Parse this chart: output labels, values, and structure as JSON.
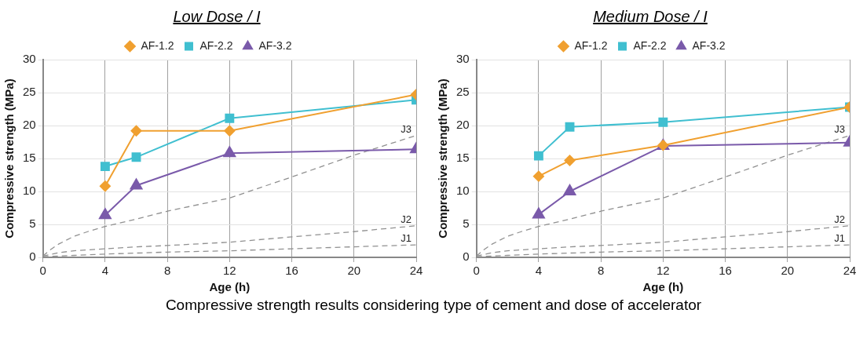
{
  "chart_data": [
    {
      "type": "line",
      "title": "Low Dose / I",
      "xlabel": "Age (h)",
      "ylabel": "Compressive strength (MPa)",
      "xlim": [
        0,
        24
      ],
      "xticks": [
        0,
        4,
        8,
        12,
        16,
        20,
        24
      ],
      "ylim": [
        0,
        30
      ],
      "yticks": [
        0,
        5,
        10,
        15,
        20,
        25,
        30
      ],
      "grid": true,
      "legend": "top",
      "x": [
        4,
        6,
        12,
        24
      ],
      "series": [
        {
          "name": "AF-1.2",
          "color": "#f0a030",
          "marker": "diamond",
          "values": [
            10.8,
            19.2,
            19.2,
            24.7
          ]
        },
        {
          "name": "AF-2.2",
          "color": "#40bfd0",
          "marker": "square",
          "values": [
            13.8,
            15.2,
            21.1,
            23.9
          ]
        },
        {
          "name": "AF-3.2",
          "color": "#7a5aaa",
          "marker": "triangle",
          "values": [
            6.4,
            10.9,
            15.8,
            16.4
          ]
        },
        {
          "name": "J3",
          "color": "#909090",
          "marker": "none",
          "line_style": "dashed",
          "x": [
            0,
            0.5,
            1,
            2,
            3,
            4,
            6,
            8,
            12,
            16,
            20,
            24
          ],
          "values": [
            0.2,
            1.2,
            2.0,
            3.2,
            4.0,
            4.7,
            5.8,
            7.0,
            9.0,
            12.2,
            15.5,
            18.5
          ]
        },
        {
          "name": "J2",
          "color": "#909090",
          "marker": "none",
          "line_style": "dashed",
          "x": [
            0,
            1,
            2,
            4,
            6,
            8,
            12,
            16,
            20,
            24
          ],
          "values": [
            0.2,
            0.7,
            1.0,
            1.3,
            1.6,
            1.8,
            2.3,
            3.1,
            3.9,
            4.8
          ]
        },
        {
          "name": "J1",
          "color": "#909090",
          "marker": "none",
          "line_style": "dashed",
          "x": [
            0,
            2,
            4,
            8,
            12,
            16,
            20,
            24
          ],
          "values": [
            0.1,
            0.3,
            0.5,
            0.8,
            1.0,
            1.3,
            1.6,
            1.9
          ]
        }
      ],
      "annotations": [
        "Compressive strength results considering type of cement and dose of accelerator"
      ]
    },
    {
      "type": "line",
      "title": "Medium Dose / I",
      "xlabel": "Age (h)",
      "ylabel": "Compressive strength (MPa)",
      "xlim": [
        0,
        24
      ],
      "xticks": [
        0,
        4,
        8,
        12,
        16,
        20,
        24
      ],
      "ylim": [
        0,
        30
      ],
      "yticks": [
        0,
        5,
        10,
        15,
        20,
        25,
        30
      ],
      "grid": true,
      "legend": "top",
      "x": [
        4,
        6,
        12,
        24
      ],
      "series": [
        {
          "name": "AF-1.2",
          "color": "#f0a030",
          "marker": "diamond",
          "values": [
            12.3,
            14.7,
            17.0,
            22.8
          ]
        },
        {
          "name": "AF-2.2",
          "color": "#40bfd0",
          "marker": "square",
          "values": [
            15.4,
            19.8,
            20.5,
            22.8
          ]
        },
        {
          "name": "AF-3.2",
          "color": "#7a5aaa",
          "marker": "triangle",
          "values": [
            6.5,
            10.0,
            16.9,
            17.4
          ]
        },
        {
          "name": "J3",
          "color": "#909090",
          "marker": "none",
          "line_style": "dashed",
          "x": [
            0,
            0.5,
            1,
            2,
            3,
            4,
            6,
            8,
            12,
            16,
            20,
            24
          ],
          "values": [
            0.2,
            1.2,
            2.0,
            3.2,
            4.0,
            4.7,
            5.8,
            7.0,
            9.0,
            12.2,
            15.5,
            18.5
          ]
        },
        {
          "name": "J2",
          "color": "#909090",
          "marker": "none",
          "line_style": "dashed",
          "x": [
            0,
            1,
            2,
            4,
            6,
            8,
            12,
            16,
            20,
            24
          ],
          "values": [
            0.2,
            0.7,
            1.0,
            1.3,
            1.6,
            1.8,
            2.3,
            3.1,
            3.9,
            4.8
          ]
        },
        {
          "name": "J1",
          "color": "#909090",
          "marker": "none",
          "line_style": "dashed",
          "x": [
            0,
            2,
            4,
            8,
            12,
            16,
            20,
            24
          ],
          "values": [
            0.1,
            0.3,
            0.5,
            0.8,
            1.0,
            1.3,
            1.6,
            1.9
          ]
        }
      ]
    }
  ]
}
